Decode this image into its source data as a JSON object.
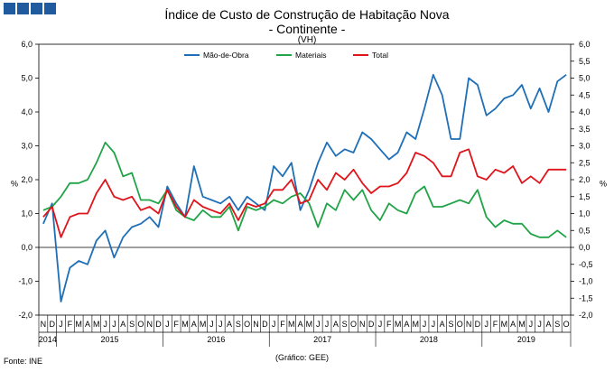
{
  "title": "Índice de Custo de Construção de Habitação Nova",
  "subtitle": "- Continente -",
  "unit_note": "(VH)",
  "source": "Fonte:  INE",
  "credit": "(Gráfico: GEE)",
  "colors": {
    "mao_de_obra": "#1f6fb6",
    "materiais": "#21a348",
    "total": "#e0141b",
    "axis": "#000000",
    "grid": "#d4d4d4"
  },
  "chart_data": {
    "type": "line",
    "title": "Índice de Custo de Construção de Habitação Nova",
    "subtitle": "- Continente -",
    "ylabel": "%",
    "ylabel_right": "%",
    "ylim": [
      -2,
      6
    ],
    "y_ticks": [
      "6,0",
      "5,0",
      "4,0",
      "3,0",
      "2,0",
      "1,0",
      "0,0",
      "-1,0",
      "-2,0"
    ],
    "ylim_right": [
      -2,
      6
    ],
    "y2_ticks": [
      "6,0",
      "5,5",
      "5,0",
      "4,5",
      "4,0",
      "3,5",
      "3,0",
      "2,5",
      "2,0",
      "1,5",
      "1,0",
      "0,5",
      "0,0",
      "-0,5",
      "-1,0",
      "-1,5",
      "-2,0"
    ],
    "grid": true,
    "legend_position": "top",
    "categories": [
      "N",
      "D",
      "J",
      "F",
      "M",
      "A",
      "M",
      "J",
      "J",
      "A",
      "S",
      "O",
      "N",
      "D",
      "J",
      "F",
      "M",
      "A",
      "M",
      "J",
      "J",
      "A",
      "S",
      "O",
      "N",
      "D",
      "J",
      "F",
      "M",
      "A",
      "M",
      "J",
      "J",
      "A",
      "S",
      "O",
      "N",
      "D",
      "J",
      "F",
      "M",
      "A",
      "M",
      "J",
      "J",
      "A",
      "S",
      "O",
      "N",
      "D",
      "J",
      "F",
      "M",
      "A",
      "M",
      "J",
      "J",
      "A",
      "S",
      "O"
    ],
    "years": [
      {
        "label": "2014",
        "start": 0,
        "end": 1
      },
      {
        "label": "2015",
        "start": 2,
        "end": 13
      },
      {
        "label": "2016",
        "start": 14,
        "end": 25
      },
      {
        "label": "2017",
        "start": 26,
        "end": 37
      },
      {
        "label": "2018",
        "start": 38,
        "end": 49
      },
      {
        "label": "2019",
        "start": 50,
        "end": 59
      }
    ],
    "series": [
      {
        "name": "Mão-de-Obra",
        "key": "mao_de_obra",
        "values": [
          0.7,
          1.3,
          -1.6,
          -0.6,
          -0.4,
          -0.5,
          0.2,
          0.5,
          -0.3,
          0.3,
          0.6,
          0.7,
          0.9,
          0.6,
          1.8,
          1.3,
          0.9,
          2.4,
          1.5,
          1.4,
          1.3,
          1.5,
          1.1,
          1.5,
          1.3,
          1.1,
          2.4,
          2.1,
          2.5,
          1.1,
          1.7,
          2.5,
          3.1,
          2.7,
          2.9,
          2.8,
          3.4,
          3.2,
          2.9,
          2.6,
          2.8,
          3.4,
          3.2,
          4.1,
          5.1,
          4.5,
          3.2,
          3.2,
          5.0,
          4.8,
          3.9,
          4.1,
          4.4,
          4.5,
          4.8,
          4.1,
          4.7,
          4.0,
          4.9,
          5.1
        ]
      },
      {
        "name": "Materiais",
        "key": "materiais",
        "values": [
          1.1,
          1.2,
          1.5,
          1.9,
          1.9,
          2.0,
          2.5,
          3.1,
          2.8,
          2.1,
          2.2,
          1.4,
          1.4,
          1.3,
          1.7,
          1.1,
          0.9,
          0.8,
          1.1,
          0.9,
          0.9,
          1.2,
          0.5,
          1.2,
          1.1,
          1.2,
          1.4,
          1.3,
          1.5,
          1.6,
          1.3,
          0.6,
          1.3,
          1.1,
          1.7,
          1.4,
          1.7,
          1.1,
          0.8,
          1.3,
          1.1,
          1.0,
          1.6,
          1.8,
          1.2,
          1.2,
          1.3,
          1.4,
          1.3,
          1.7,
          0.9,
          0.6,
          0.8,
          0.7,
          0.7,
          0.4,
          0.3,
          0.3,
          0.5,
          0.3
        ]
      },
      {
        "name": "Total",
        "key": "total",
        "values": [
          0.9,
          1.2,
          0.3,
          0.9,
          1.0,
          1.0,
          1.6,
          2.0,
          1.5,
          1.4,
          1.5,
          1.1,
          1.2,
          1.0,
          1.7,
          1.2,
          0.9,
          1.4,
          1.2,
          1.1,
          1.0,
          1.3,
          0.8,
          1.3,
          1.2,
          1.3,
          1.7,
          1.7,
          2.0,
          1.3,
          1.4,
          2.0,
          1.7,
          2.2,
          2.0,
          2.3,
          1.9,
          1.6,
          1.8,
          1.8,
          1.9,
          2.2,
          2.8,
          2.7,
          2.5,
          2.1,
          2.1,
          2.8,
          2.9,
          2.1,
          2.0,
          2.3,
          2.2,
          2.4,
          1.9,
          2.1,
          1.9,
          2.3,
          2.3,
          2.3
        ]
      }
    ]
  }
}
